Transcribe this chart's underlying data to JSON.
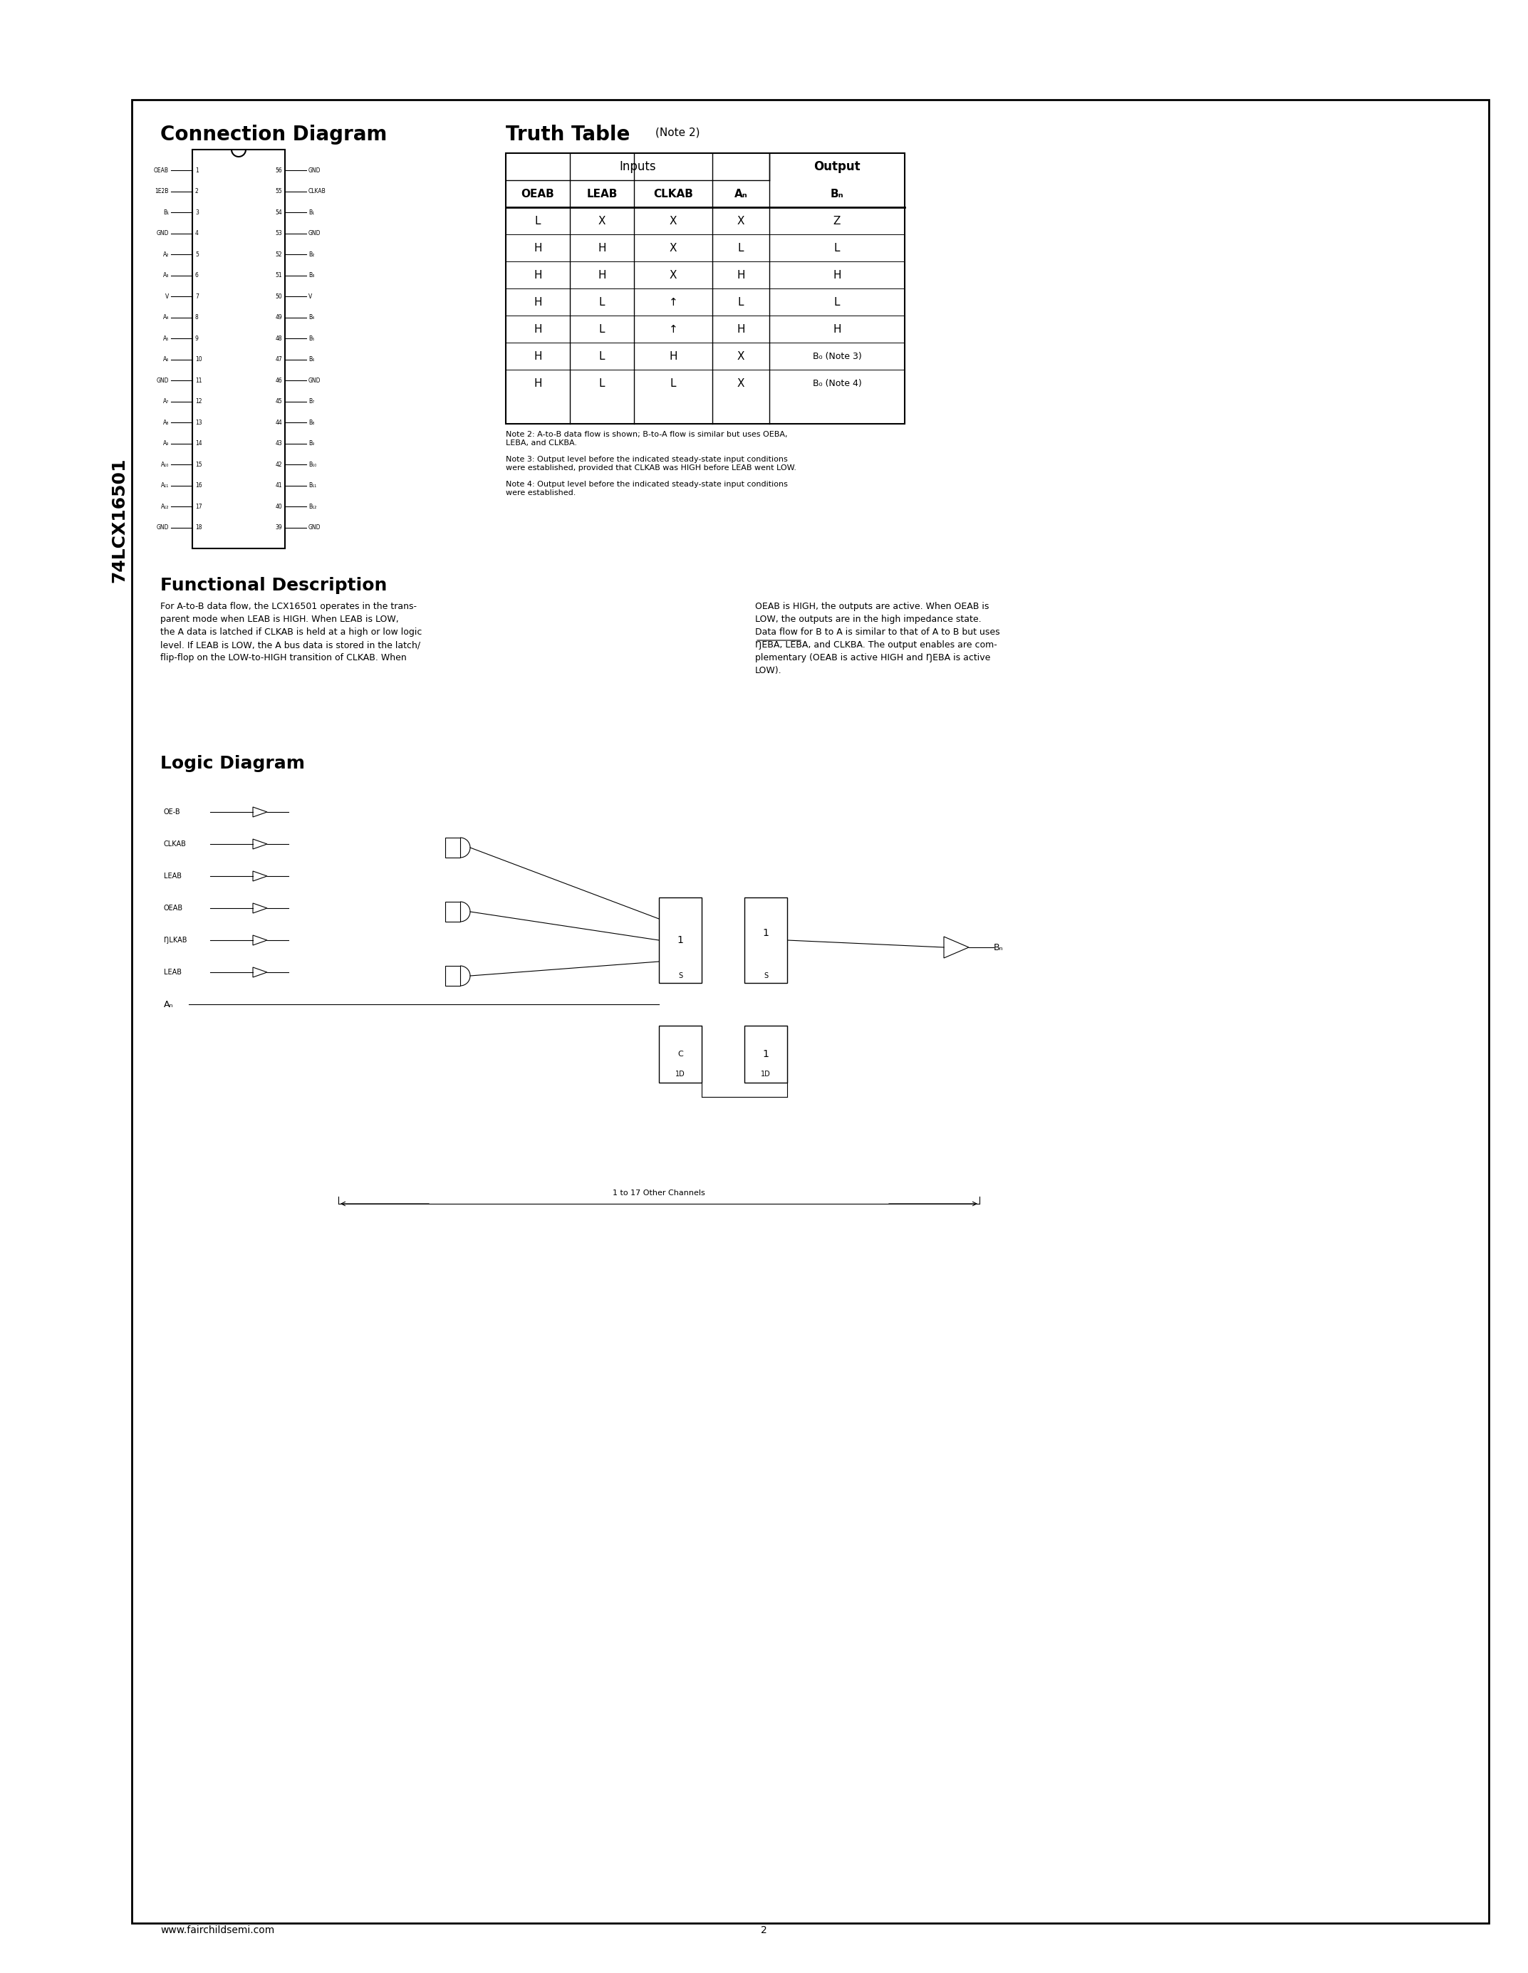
{
  "page_bg": "#ffffff",
  "border_color": "#000000",
  "title_part_number": "74LCX16501",
  "main_title": "Connection Diagram",
  "truth_table_title": "Truth Table",
  "truth_table_note_title": "(Note 2)",
  "section_functional": "Functional Description",
  "section_logic": "Logic Diagram",
  "footer_url": "www.fairchildsemi.com",
  "footer_page": "2",
  "truth_table_headers": [
    "OEAB",
    "LEAB",
    "CLKAB",
    "A_n",
    "B_n"
  ],
  "truth_table_rows": [
    [
      "L",
      "X",
      "X",
      "X",
      "Z"
    ],
    [
      "H",
      "H",
      "X",
      "L",
      "L"
    ],
    [
      "H",
      "H",
      "X",
      "H",
      "H"
    ],
    [
      "H",
      "L",
      "↑",
      "L",
      "L"
    ],
    [
      "H",
      "L",
      "↑",
      "H",
      "H"
    ],
    [
      "H",
      "L",
      "H",
      "X",
      "B₀ (Note 3)"
    ],
    [
      "H",
      "L",
      "L",
      "X",
      "B₀ (Note 4)"
    ]
  ],
  "note2": "Note 2: A-to-B data flow is shown; B-to-A flow is similar but uses OEBA,\nLEBA, and CLKBA.",
  "note3": "Note 3: Output level before the indicated steady-state input conditions\nwere established, provided that CLKAB was HIGH before LEAB went LOW.",
  "note4": "Note 4: Output level before the indicated steady-state input conditions\nwere established.",
  "func_desc_col1": "For A-to-B data flow, the LCX16501 operates in the trans-parent mode when LEAB is HIGH. When LEAB is LOW, the A data is latched if CLKAB is held at a high or low logic level. If LEAB is LOW, the A bus data is stored in the latch/flip-flop on the LOW-to-HIGH transition of CLKAB. When",
  "func_desc_col2": "OEAB is HIGH, the outputs are active. When OEAB is LOW, the outputs are in the high impedance state.\nData flow for B to A is similar to that of A to B but uses OEBA, LEBA, and CLKBA. The output enables are com-plementary (OEAB is active HIGH and OEBA is active LOW).",
  "conn_pins_left": [
    [
      "OEAB",
      "1"
    ],
    [
      "1E2B",
      "2"
    ],
    [
      "B₁",
      "3"
    ],
    [
      "GND",
      "4"
    ],
    [
      "A₂",
      "5"
    ],
    [
      "A₃",
      "6"
    ],
    [
      "V⁣⁣",
      "7"
    ],
    [
      "A₄",
      "8"
    ],
    [
      "A₅",
      "9"
    ],
    [
      "A₆",
      "10"
    ],
    [
      "GND",
      "11"
    ],
    [
      "A₇",
      "12"
    ],
    [
      "A₈",
      "13"
    ],
    [
      "A₉",
      "14"
    ],
    [
      "A₁₀",
      "15"
    ],
    [
      "A₁₁",
      "16"
    ],
    [
      "A₁₂",
      "17"
    ],
    [
      "GND",
      "18"
    ]
  ],
  "conn_pins_right": [
    [
      "GND",
      "56"
    ],
    [
      "CLKAB",
      "55"
    ],
    [
      "B₁",
      "54"
    ],
    [
      "GND",
      "53"
    ],
    [
      "B₂",
      "52"
    ],
    [
      "B₃",
      "51"
    ],
    [
      "V⁣⁣",
      "50"
    ],
    [
      "B₄",
      "49"
    ],
    [
      "B₅",
      "48"
    ],
    [
      "B₆",
      "47"
    ],
    [
      "GND",
      "46"
    ],
    [
      "B₇",
      "45"
    ],
    [
      "B₈",
      "44"
    ],
    [
      "B₉",
      "43"
    ],
    [
      "B₁₀",
      "42"
    ],
    [
      "B₁₁",
      "41"
    ],
    [
      "B₁₂",
      "40"
    ],
    [
      "GND",
      "39"
    ]
  ]
}
